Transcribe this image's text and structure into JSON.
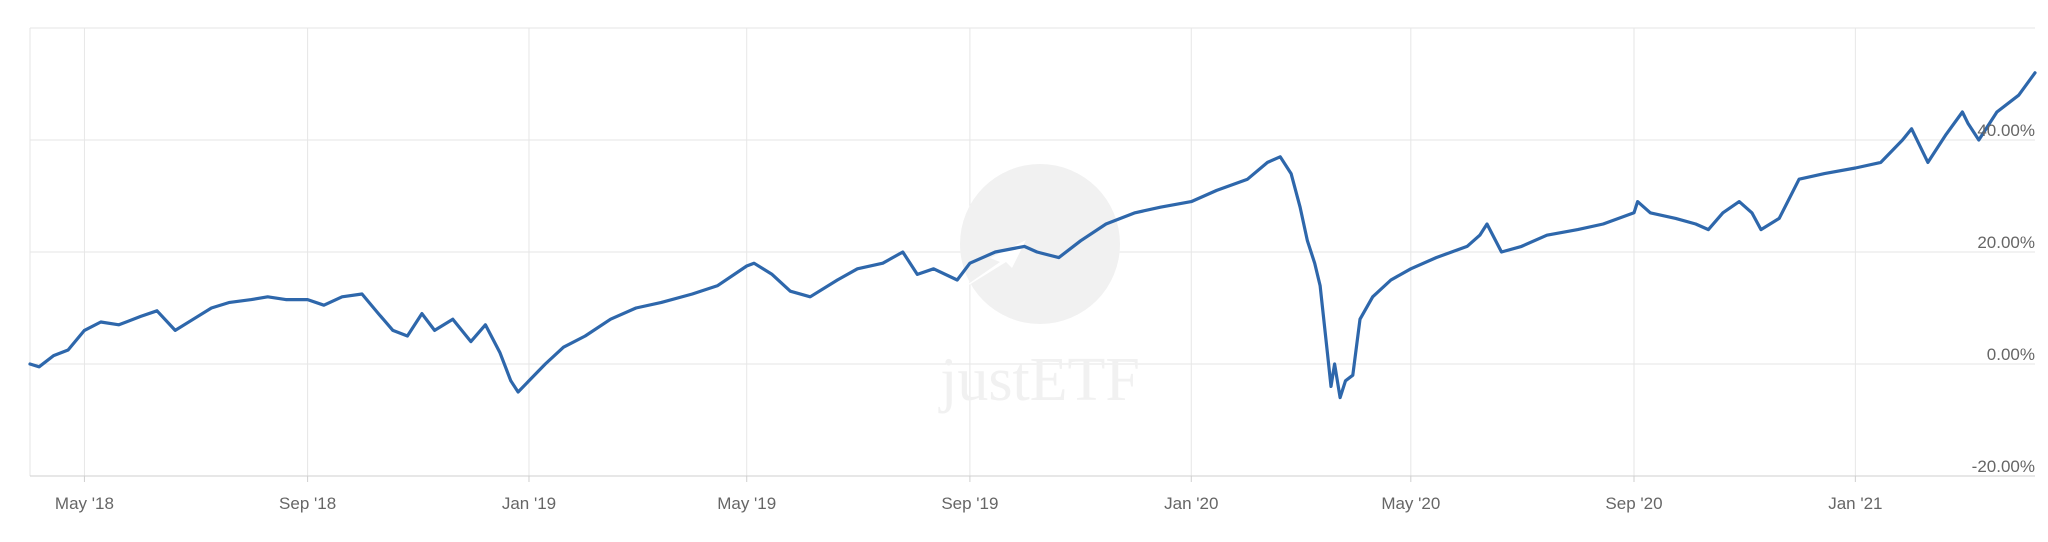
{
  "chart_data": {
    "type": "line",
    "title": "",
    "xlabel": "",
    "ylabel": "",
    "x_ticks": [
      "May '18",
      "Sep '18",
      "Jan '19",
      "May '19",
      "Sep '19",
      "Jan '20",
      "May '20",
      "Sep '20",
      "Jan '21"
    ],
    "y_ticks": [
      "-20.00%",
      "0.00%",
      "20.00%",
      "40.00%"
    ],
    "ylim": [
      -20,
      60
    ],
    "xlim": [
      "2018-04-01",
      "2021-04-10"
    ],
    "grid": true,
    "line_color": "#2e67ab",
    "watermark": "justETF",
    "series": [
      {
        "name": "",
        "x": [
          "2018-04-01",
          "2018-04-06",
          "2018-04-14",
          "2018-04-22",
          "2018-05-01",
          "2018-05-10",
          "2018-05-20",
          "2018-06-01",
          "2018-06-10",
          "2018-06-20",
          "2018-06-30",
          "2018-07-10",
          "2018-07-20",
          "2018-08-01",
          "2018-08-10",
          "2018-08-20",
          "2018-09-01",
          "2018-09-10",
          "2018-09-20",
          "2018-10-01",
          "2018-10-10",
          "2018-10-18",
          "2018-10-26",
          "2018-11-03",
          "2018-11-10",
          "2018-11-20",
          "2018-11-30",
          "2018-12-08",
          "2018-12-16",
          "2018-12-22",
          "2018-12-26",
          "2019-01-01",
          "2019-01-10",
          "2019-01-20",
          "2019-02-01",
          "2019-02-15",
          "2019-03-01",
          "2019-03-15",
          "2019-04-01",
          "2019-04-15",
          "2019-05-01",
          "2019-05-05",
          "2019-05-15",
          "2019-05-25",
          "2019-06-05",
          "2019-06-20",
          "2019-07-01",
          "2019-07-15",
          "2019-07-26",
          "2019-08-03",
          "2019-08-12",
          "2019-08-25",
          "2019-09-01",
          "2019-09-15",
          "2019-10-01",
          "2019-10-08",
          "2019-10-20",
          "2019-11-01",
          "2019-11-15",
          "2019-12-01",
          "2019-12-15",
          "2020-01-01",
          "2020-01-15",
          "2020-02-01",
          "2020-02-12",
          "2020-02-19",
          "2020-02-25",
          "2020-03-01",
          "2020-03-05",
          "2020-03-09",
          "2020-03-12",
          "2020-03-16",
          "2020-03-18",
          "2020-03-20",
          "2020-03-23",
          "2020-03-26",
          "2020-03-30",
          "2020-04-03",
          "2020-04-10",
          "2020-04-20",
          "2020-05-01",
          "2020-05-15",
          "2020-06-01",
          "2020-06-08",
          "2020-06-12",
          "2020-06-20",
          "2020-07-01",
          "2020-07-15",
          "2020-08-01",
          "2020-08-15",
          "2020-09-01",
          "2020-09-03",
          "2020-09-10",
          "2020-09-24",
          "2020-10-05",
          "2020-10-12",
          "2020-10-20",
          "2020-10-29",
          "2020-11-05",
          "2020-11-10",
          "2020-11-20",
          "2020-12-01",
          "2020-12-15",
          "2021-01-01",
          "2021-01-15",
          "2021-01-27",
          "2021-02-01",
          "2021-02-10",
          "2021-02-20",
          "2021-03-01",
          "2021-03-04",
          "2021-03-10",
          "2021-03-20",
          "2021-04-01",
          "2021-04-10"
        ],
        "values": [
          0.0,
          -0.5,
          1.5,
          2.5,
          6.0,
          7.5,
          7.0,
          8.5,
          9.5,
          6.0,
          8.0,
          10.0,
          11.0,
          11.5,
          12.0,
          11.5,
          11.5,
          10.5,
          12.0,
          12.5,
          9.0,
          6.0,
          5.0,
          9.0,
          6.0,
          8.0,
          4.0,
          7.0,
          2.0,
          -3.0,
          -5.0,
          -3.0,
          0.0,
          3.0,
          5.0,
          8.0,
          10.0,
          11.0,
          12.5,
          14.0,
          17.5,
          18.0,
          16.0,
          13.0,
          12.0,
          15.0,
          17.0,
          18.0,
          20.0,
          16.0,
          17.0,
          15.0,
          18.0,
          20.0,
          21.0,
          20.0,
          19.0,
          22.0,
          25.0,
          27.0,
          28.0,
          29.0,
          31.0,
          33.0,
          36.0,
          37.0,
          34.0,
          28.0,
          22.0,
          18.0,
          14.0,
          2.0,
          -4.0,
          0.0,
          -6.0,
          -3.0,
          -2.0,
          8.0,
          12.0,
          15.0,
          17.0,
          19.0,
          21.0,
          23.0,
          25.0,
          20.0,
          21.0,
          23.0,
          24.0,
          25.0,
          27.0,
          29.0,
          27.0,
          26.0,
          25.0,
          24.0,
          27.0,
          29.0,
          27.0,
          24.0,
          26.0,
          33.0,
          34.0,
          35.0,
          36.0,
          40.0,
          42.0,
          36.0,
          41.0,
          45.0,
          43.0,
          40.0,
          45.0,
          48.0,
          52.0
        ]
      }
    ]
  }
}
